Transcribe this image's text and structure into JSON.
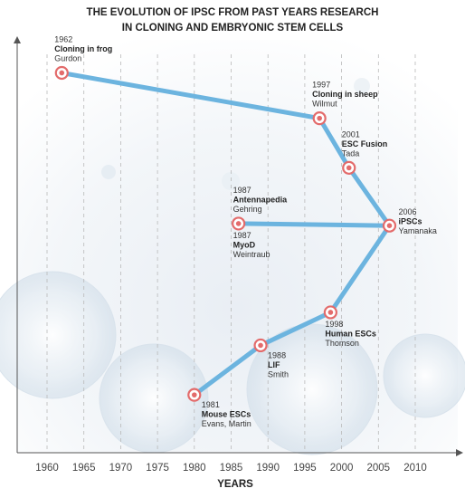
{
  "chart_data": {
    "type": "line",
    "title": [
      "THE EVOLUTION OF IPSC FROM PAST YEARS RESEARCH",
      "IN CLONING AND EMBRYONIC STEM CELLS"
    ],
    "xlabel": "YEARS",
    "ylabel": "",
    "xlim": [
      1955,
      2014
    ],
    "ylim": [
      0,
      10
    ],
    "x_ticks": [
      1960,
      1965,
      1970,
      1975,
      1980,
      1985,
      1990,
      1995,
      2000,
      2005,
      2010
    ],
    "grid": "vertical dashed",
    "line_color": "#6cb4df",
    "marker_color": "#e36b6b",
    "series": [
      {
        "points": [
          {
            "x": 1962,
            "y": 9.2
          },
          {
            "x": 1997,
            "y": 8.1
          },
          {
            "x": 2001,
            "y": 6.9
          },
          {
            "x": 2006.5,
            "y": 5.5
          },
          {
            "x": 1986,
            "y": 5.55
          },
          {
            "x": 2006.5,
            "y": 5.5
          },
          {
            "x": 1998.5,
            "y": 3.4
          },
          {
            "x": 1989,
            "y": 2.6
          },
          {
            "x": 1980,
            "y": 1.4
          }
        ]
      }
    ],
    "annotations": [
      {
        "year": "1962",
        "title": "Cloning in frog",
        "name": "Gurdon",
        "at": {
          "x": 1962,
          "y": 9.2
        },
        "placement": "above-right"
      },
      {
        "year": "1997",
        "title": "Cloning in sheep",
        "name": "Wilmut",
        "at": {
          "x": 1997,
          "y": 8.1
        },
        "placement": "above-left"
      },
      {
        "year": "2001",
        "title": "ESC Fusion",
        "name": "Tada",
        "at": {
          "x": 2001,
          "y": 6.9
        },
        "placement": "above-right"
      },
      {
        "year": "2006",
        "title": "iPSCs",
        "name": "Yamanaka",
        "at": {
          "x": 2006.5,
          "y": 5.5
        },
        "placement": "right"
      },
      {
        "year": "1987",
        "title": "Antennapedia",
        "name": "Gehring",
        "at": {
          "x": 1986,
          "y": 5.55
        },
        "placement": "above"
      },
      {
        "year": "1987",
        "title": "MyoD",
        "name": "Weintraub",
        "at": {
          "x": 1986,
          "y": 5.55
        },
        "placement": "below"
      },
      {
        "year": "1998",
        "title": "Human ESCs",
        "name": "Thomson",
        "at": {
          "x": 1998.5,
          "y": 3.4
        },
        "placement": "below"
      },
      {
        "year": "1988",
        "title": "LIF",
        "name": "Smith",
        "at": {
          "x": 1989,
          "y": 2.6
        },
        "placement": "below-right"
      },
      {
        "year": "1981",
        "title": "Mouse ESCs",
        "name": "Evans, Martin",
        "at": {
          "x": 1980,
          "y": 1.4
        },
        "placement": "below-right"
      }
    ]
  }
}
